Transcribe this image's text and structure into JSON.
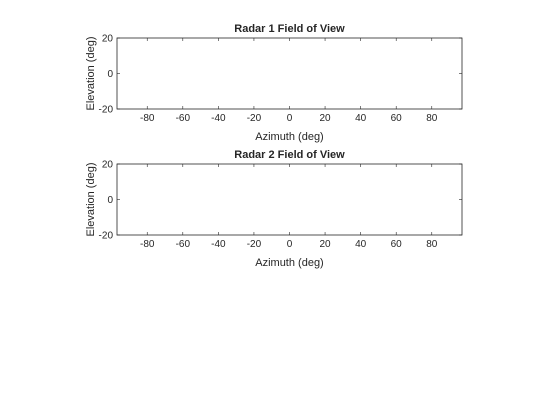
{
  "chart_data": [
    {
      "type": "scatter",
      "title": "Radar 1 Field of View",
      "xlabel": "Azimuth (deg)",
      "ylabel": "Elevation (deg)",
      "xlim": [
        -97,
        97
      ],
      "ylim": [
        -20,
        20
      ],
      "xticks": [
        -80,
        -60,
        -40,
        -20,
        0,
        20,
        40,
        60,
        80
      ],
      "yticks": [
        -20,
        0,
        20
      ],
      "grid": false,
      "series": []
    },
    {
      "type": "scatter",
      "title": "Radar 2 Field of View",
      "xlabel": "Azimuth (deg)",
      "ylabel": "Elevation (deg)",
      "xlim": [
        -97,
        97
      ],
      "ylim": [
        -20,
        20
      ],
      "xticks": [
        -80,
        -60,
        -40,
        -20,
        0,
        20,
        40,
        60,
        80
      ],
      "yticks": [
        -20,
        0,
        20
      ],
      "grid": false,
      "series": []
    }
  ]
}
